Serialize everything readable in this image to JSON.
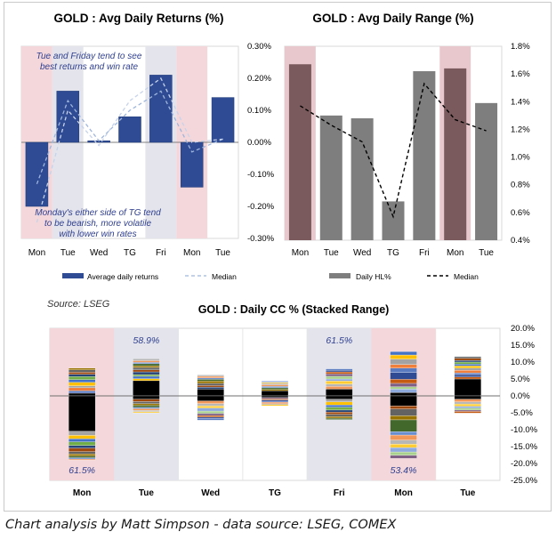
{
  "caption": "Chart analysis by Matt Simpson - data source: LSEG, COMEX",
  "source_note": "Source: LSEG",
  "chart_data": [
    {
      "id": "returns",
      "type": "bar",
      "title": "GOLD : Avg Daily Returns (%)",
      "categories": [
        "Mon",
        "Tue",
        "Wed",
        "TG",
        "Fri",
        "Mon",
        "Tue"
      ],
      "series": [
        {
          "name": "Average daily returns",
          "type": "bar",
          "color": "#2f4b94",
          "values": [
            -0.2,
            0.16,
            0.005,
            0.08,
            0.21,
            -0.14,
            0.14
          ]
        },
        {
          "name": "Median",
          "type": "line",
          "color": "#9fb6dc",
          "values": [
            -0.13,
            0.13,
            0.005,
            0.1,
            0.16,
            -0.03,
            0.01
          ]
        },
        {
          "name": "",
          "type": "line",
          "color": "#c6d3ea",
          "values": [
            -0.25,
            0.1,
            -0.01,
            0.13,
            0.2,
            0.0,
            0.01
          ]
        }
      ],
      "ylim": [
        -0.3,
        0.3
      ],
      "yticks": [
        "0.30%",
        "0.20%",
        "0.10%",
        "0.00%",
        "-0.10%",
        "-0.20%",
        "-0.30%"
      ],
      "highlight": [
        {
          "index": 0,
          "color": "#f4d7da"
        },
        {
          "index": 1,
          "color": "#e4e5ec"
        },
        {
          "index": 4,
          "color": "#e4e5ec"
        },
        {
          "index": 5,
          "color": "#f4d7da"
        }
      ],
      "annotations": [
        "Tue and Friday tend to see best returns and win rate",
        "Monday's either side of TG tend to be bearish, more volatile with lower win rates"
      ],
      "legend": [
        "Average daily returns",
        "Median"
      ]
    },
    {
      "id": "range",
      "type": "bar",
      "title": "GOLD : Avg Daily Range (%)",
      "categories": [
        "Mon",
        "Tue",
        "Wed",
        "TG",
        "Fri",
        "Mon",
        "Tue"
      ],
      "series": [
        {
          "name": "Daily HL%",
          "type": "bar",
          "color": "#7e7e7e",
          "values": [
            1.67,
            1.3,
            1.28,
            0.68,
            1.62,
            1.64,
            1.39
          ]
        },
        {
          "name": "Median",
          "type": "line",
          "color": "#000000",
          "values": [
            1.37,
            1.23,
            1.11,
            0.57,
            1.53,
            1.27,
            1.19
          ]
        }
      ],
      "ylim": [
        0.4,
        1.8
      ],
      "yticks": [
        "1.8%",
        "1.6%",
        "1.4%",
        "1.2%",
        "1.0%",
        "0.8%",
        "0.6%",
        "0.4%"
      ],
      "highlight": [
        {
          "index": 0,
          "color": "#e8c8cc"
        },
        {
          "index": 5,
          "color": "#e8c8cc"
        }
      ],
      "legend": [
        "Daily HL%",
        "Median"
      ]
    },
    {
      "id": "stacked",
      "type": "bar",
      "title": "GOLD : Daily CC % (Stacked Range)",
      "categories": [
        "Mon",
        "Tue",
        "Wed",
        "TG",
        "Fri",
        "Mon",
        "Tue"
      ],
      "ylim": [
        -25,
        20
      ],
      "yticks": [
        "20.0%",
        "15.0%",
        "10.0%",
        "5.0%",
        "0.0%",
        "-5.0%",
        "-10.0%",
        "-15.0%",
        "-20.0%",
        "-25.0%"
      ],
      "highlight": [
        {
          "index": 0,
          "color": "#f4d7da"
        },
        {
          "index": 1,
          "color": "#e4e5ec"
        },
        {
          "index": 4,
          "color": "#e4e5ec"
        },
        {
          "index": 5,
          "color": "#f4d7da"
        }
      ],
      "win_rates": [
        {
          "index": 0,
          "label": "61.5%",
          "position": "bottom"
        },
        {
          "index": 1,
          "label": "58.9%",
          "position": "top"
        },
        {
          "index": 4,
          "label": "61.5%",
          "position": "top"
        },
        {
          "index": 5,
          "label": "53.4%",
          "position": "bottom"
        }
      ],
      "palette": [
        "#2f4b94",
        "#5b7bc0",
        "#f07f3c",
        "#a3a3a3",
        "#ffc000",
        "#4472c4",
        "#70ad47",
        "#264478",
        "#9e480e",
        "#636363",
        "#997300",
        "#43682b",
        "#698ed0",
        "#f1975a",
        "#b7b7b7",
        "#ffcd33",
        "#8faadc",
        "#a9d18e",
        "#7f6084",
        "#c55a11"
      ],
      "stacks": [
        {
          "pos": [
            0.8,
            0.7,
            0.9,
            0.6,
            1.0,
            0.8,
            0.9,
            0.7,
            0.6,
            0.7,
            0.5
          ],
          "neg": [
            -10.5,
            -1.2,
            -1.0,
            -0.9,
            -1.1,
            -0.8,
            -1.0,
            -0.7,
            -0.6,
            -0.5,
            -0.4,
            -0.3
          ]
        },
        {
          "pos": [
            4.5,
            0.6,
            0.7,
            0.5,
            0.8,
            0.6,
            0.7,
            0.5,
            0.6,
            0.4,
            0.5,
            0.6
          ],
          "neg": [
            -1.0,
            -0.7,
            -0.6,
            -0.5,
            -0.6,
            -0.4,
            -0.5,
            -0.4,
            -0.3
          ]
        },
        {
          "pos": [
            2.0,
            0.6,
            0.5,
            0.6,
            0.7,
            0.5,
            0.4,
            0.5,
            0.4
          ],
          "neg": [
            -1.5,
            -0.8,
            -0.7,
            -0.6,
            -0.9,
            -0.7,
            -0.6,
            -0.5,
            -0.4,
            -0.5
          ]
        },
        {
          "pos": [
            1.5,
            0.4,
            0.5,
            0.4,
            0.5,
            0.4,
            0.3,
            0.4
          ],
          "neg": [
            -0.5,
            -0.4,
            -0.3,
            -0.4,
            -0.3,
            -0.4,
            -0.3,
            -0.3
          ]
        },
        {
          "pos": [
            2.0,
            0.8,
            0.7,
            0.9,
            0.6,
            0.8,
            0.7,
            0.6,
            0.5,
            0.4
          ],
          "neg": [
            -1.0,
            -0.8,
            -0.9,
            -0.7,
            -0.8,
            -0.6,
            -0.7,
            -0.6,
            -0.5,
            -0.4
          ]
        },
        {
          "pos": [
            1.0,
            1.0,
            0.7,
            1.0,
            1.2,
            2.0,
            1.3,
            1.1,
            1.6,
            1.2,
            1.0
          ],
          "neg": [
            -3.0,
            -0.9,
            -2.0,
            -1.2,
            -3.5,
            -1.0,
            -1.5,
            -1.2,
            -1.0,
            -1.3,
            -1.0,
            -0.9
          ]
        },
        {
          "pos": [
            5.0,
            0.6,
            0.7,
            0.5,
            0.8,
            0.6,
            0.7,
            0.5,
            0.6,
            0.5,
            0.6,
            0.5
          ],
          "neg": [
            -1.0,
            -0.8,
            -0.6,
            -0.7,
            -0.5,
            -0.6,
            -0.4,
            -0.5
          ]
        }
      ]
    }
  ]
}
